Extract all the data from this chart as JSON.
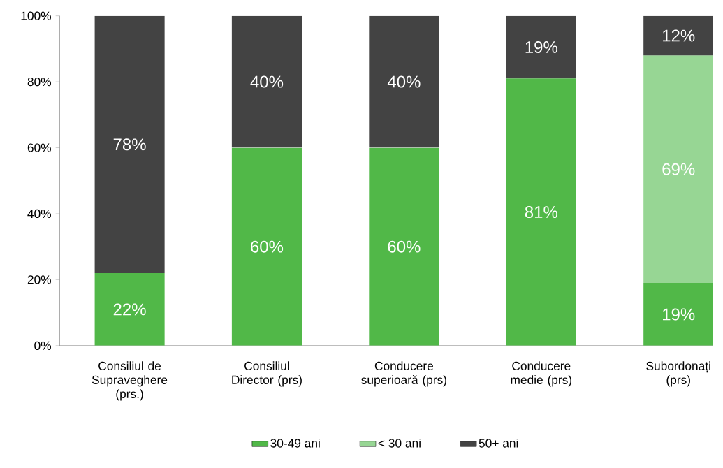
{
  "chart_data": {
    "type": "bar",
    "stacked": true,
    "categories": [
      "Consiliul de Supraveghere (prs.)",
      "Consiliul Director (prs)",
      "Conducere superioară (prs)",
      "Conducere medie (prs)",
      "Subordonați (prs)"
    ],
    "series": [
      {
        "name": "30-49 ani",
        "color": "#51b848",
        "values": [
          22,
          60,
          60,
          81,
          19
        ],
        "value_labels": [
          "22%",
          "60%",
          "60%",
          "81%",
          "19%"
        ]
      },
      {
        "name": "< 30 ani",
        "color": "#97d694",
        "values": [
          null,
          null,
          null,
          null,
          69
        ],
        "value_labels": [
          null,
          null,
          null,
          null,
          "69%"
        ]
      },
      {
        "name": "50+ ani",
        "color": "#434343",
        "values": [
          78,
          40,
          40,
          19,
          12
        ],
        "value_labels": [
          "78%",
          "40%",
          "40%",
          "19%",
          "12%"
        ]
      }
    ],
    "ylim": [
      0,
      100
    ],
    "yticks": [
      {
        "value": 0,
        "label": "0%"
      },
      {
        "value": 20,
        "label": "20%"
      },
      {
        "value": 40,
        "label": "40%"
      },
      {
        "value": 60,
        "label": "60%"
      },
      {
        "value": 80,
        "label": "80%"
      },
      {
        "value": 100,
        "label": "100%"
      }
    ],
    "legend": "bottom"
  }
}
